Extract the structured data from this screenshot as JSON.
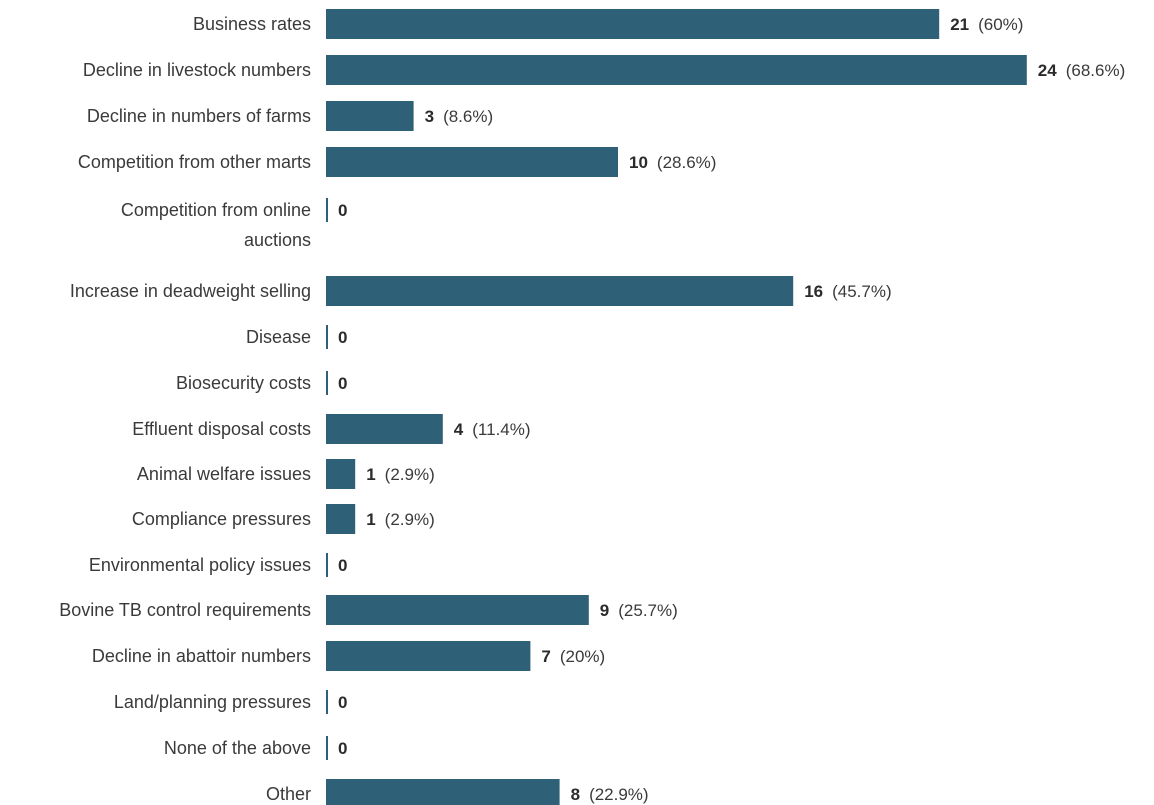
{
  "chart_data": {
    "type": "bar",
    "orientation": "horizontal",
    "bar_color": "#2e6178",
    "axis_color": "#2e6178",
    "label_color": "#3a3a3a",
    "categories": [
      "Business rates",
      "Decline in livestock numbers",
      "Decline in numbers of farms",
      "Competition from other marts",
      [
        "Competition from online",
        "auctions"
      ],
      "Increase in deadweight selling",
      "Disease",
      "Biosecurity costs",
      "Effluent disposal costs",
      "Animal welfare issues",
      "Compliance pressures",
      "Environmental policy issues",
      "Bovine TB control requirements",
      "Decline in abattoir numbers",
      "Land/planning pressures",
      "None of the above",
      "Other"
    ],
    "values": [
      21,
      24,
      3,
      10,
      0,
      16,
      0,
      0,
      4,
      1,
      1,
      0,
      9,
      7,
      0,
      0,
      8
    ],
    "percent_labels": [
      "(60%)",
      "(68.6%)",
      "(8.6%)",
      "(28.6%)",
      "",
      "(45.7%)",
      "",
      "",
      "(11.4%)",
      "(2.9%)",
      "(2.9%)",
      "",
      "(25.7%)",
      "(20%)",
      "",
      "",
      "(22.9%)"
    ]
  }
}
